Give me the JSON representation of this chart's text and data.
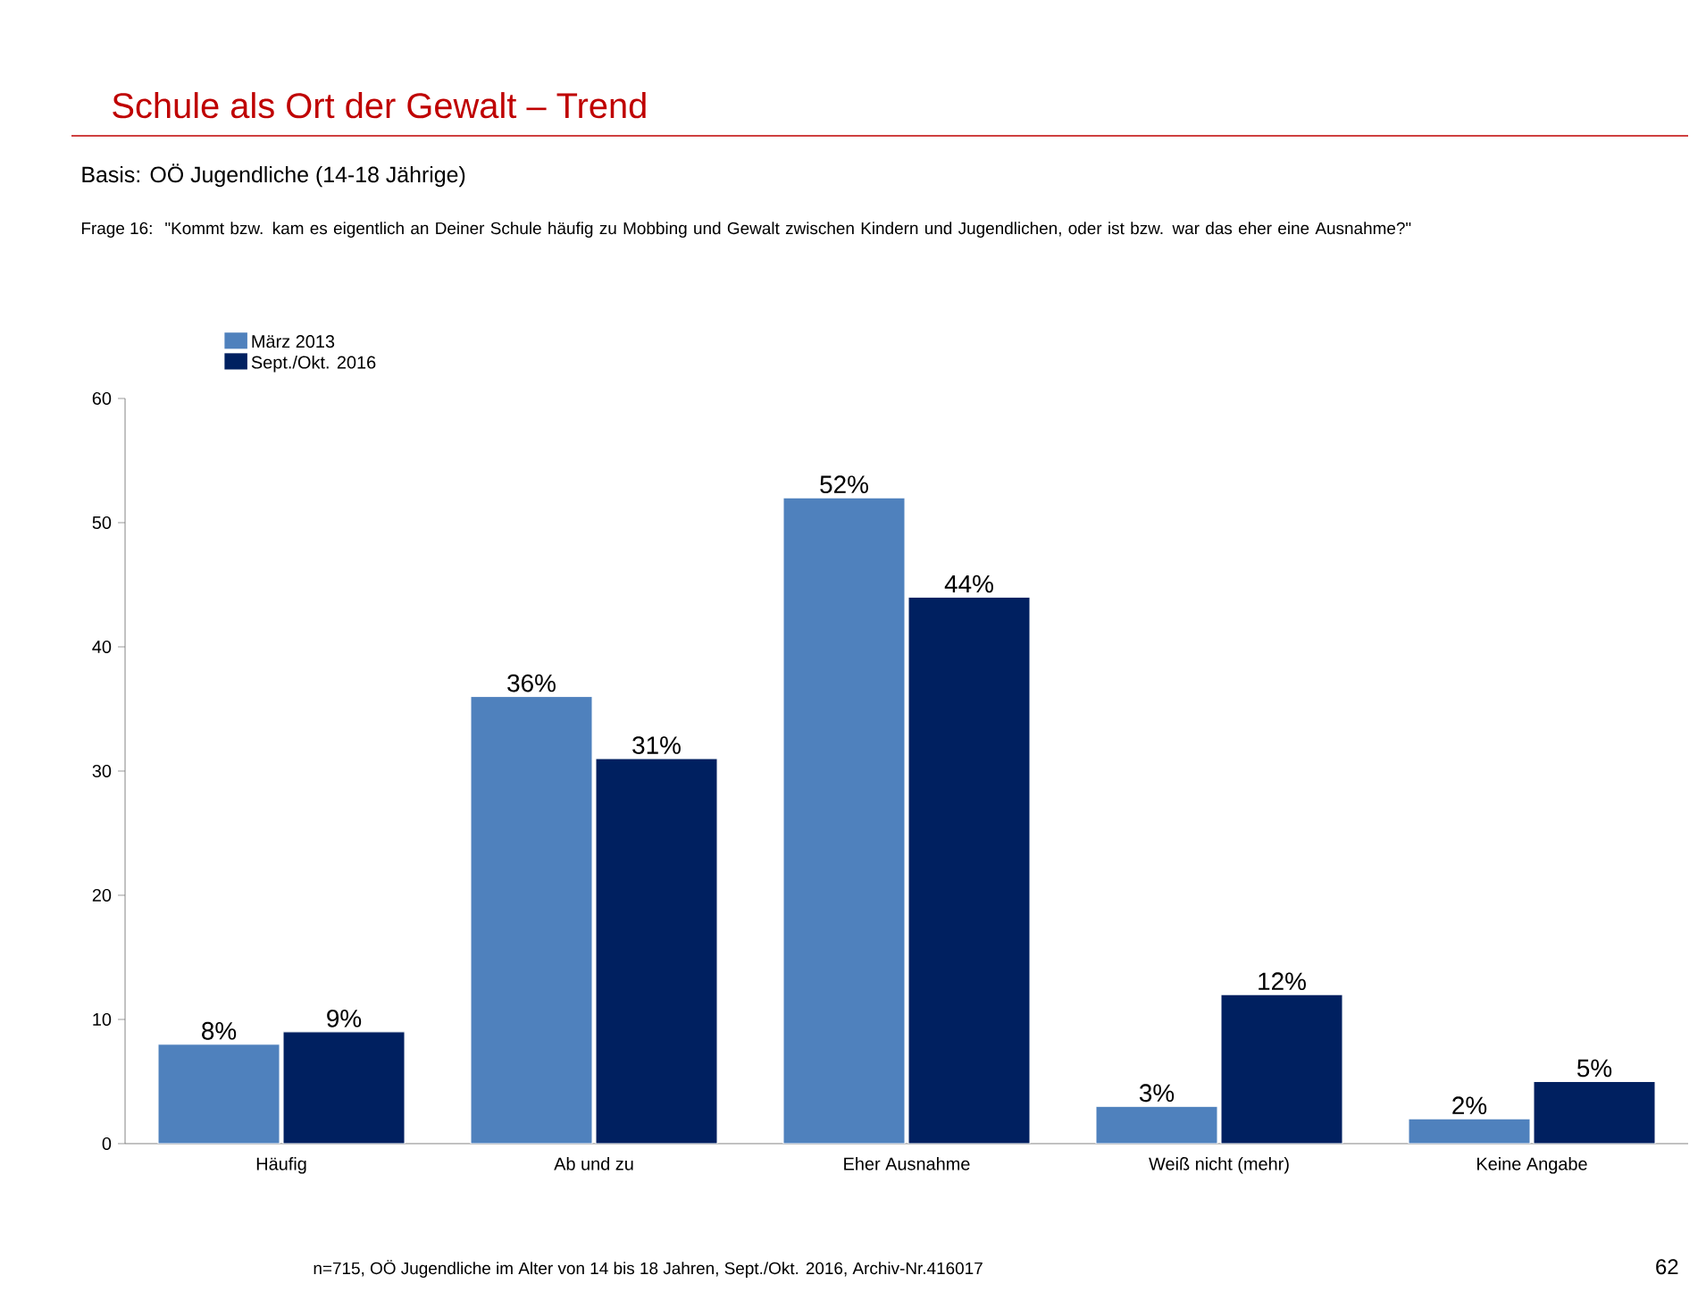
{
  "chart_data": {
    "type": "bar",
    "title": "Schule als Ort der Gewalt – Trend",
    "subtitle": "Basis:  OÖ Jugendliche  (14-18 Jährige)",
    "annotations": [
      "Frage 16:",
      "\"Kommt bzw. kam es eigentlich an Deiner Schule häufig zu Mobbing und Gewalt zwischen Kindern und Jugendlichen, oder ist bzw. war das eher eine Ausnahme?\"",
      "n=715, OÖ Jugendliche im Alter von 14 bis 18 Jahren, Sept./Okt. 2016, Archiv-Nr.416017",
      "62"
    ],
    "categories": [
      "Häufig",
      "Ab und zu",
      "Eher Ausnahme",
      "Weiß nicht (mehr)",
      "Keine Angabe"
    ],
    "series": [
      {
        "name": "März 2013",
        "color": "#4f81bd",
        "values": [
          8,
          36,
          52,
          3,
          2
        ],
        "value_labels": [
          "8%",
          "36%",
          "52%",
          "3%",
          "2%"
        ]
      },
      {
        "name": "Sept./Okt. 2016",
        "color": "#002060",
        "values": [
          9,
          31,
          44,
          12,
          5
        ],
        "value_labels": [
          "9%",
          "31%",
          "44%",
          "12%",
          "5%"
        ]
      }
    ],
    "ylim": [
      0,
      60
    ],
    "yticks": [
      0,
      10,
      20,
      30,
      40,
      50,
      60
    ],
    "grid": false,
    "legend": "top left"
  }
}
